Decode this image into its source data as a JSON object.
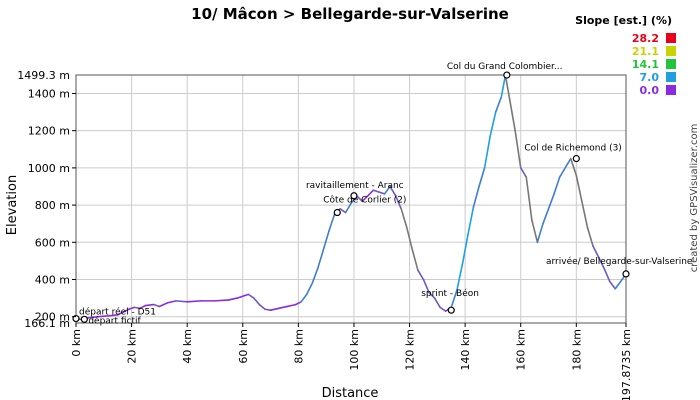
{
  "chart_data": {
    "type": "line",
    "title": "10/ Mâcon > Bellegarde-sur-Valserine",
    "xlabel": "Distance",
    "ylabel": "Elevation",
    "xlim": [
      0,
      197.8735
    ],
    "ylim": [
      166.1,
      1499.3
    ],
    "x_ticks": [
      0,
      20,
      40,
      60,
      80,
      100,
      120,
      140,
      160,
      180
    ],
    "x_tick_labels": [
      "0 km",
      "20 km",
      "40 km",
      "60 km",
      "80 km",
      "100 km",
      "120 km",
      "140 km",
      "160 km",
      "180 km"
    ],
    "x_end_label": "197.8735 km",
    "y_ticks": [
      200,
      400,
      600,
      800,
      1000,
      1200,
      1400
    ],
    "y_tick_labels": [
      "200 m",
      "400 m",
      "600 m",
      "800 m",
      "1000 m",
      "1200 m",
      "1400 m"
    ],
    "y_min_label": "166.1 m",
    "y_max_label": "1499.3 m",
    "grid": true,
    "series": [
      {
        "values_x": [
          0,
          2,
          5,
          8,
          12,
          15,
          17,
          19,
          21,
          23,
          25,
          28,
          30,
          33,
          36,
          40,
          45,
          50,
          55,
          58,
          60,
          62,
          64,
          66,
          68,
          70,
          73,
          76,
          79,
          81,
          83,
          85,
          87,
          89,
          91,
          93,
          95,
          97,
          99,
          101,
          103,
          105,
          107,
          109,
          111,
          113,
          115,
          117,
          119,
          121,
          123,
          125,
          127,
          129,
          131,
          133,
          135,
          137,
          139,
          141,
          143,
          145,
          147,
          149,
          151,
          153,
          154.5,
          156,
          158,
          160,
          162,
          164,
          166,
          168,
          170,
          172,
          174,
          176,
          178,
          180,
          182,
          184,
          186,
          188,
          190,
          192,
          194,
          196,
          197.87
        ],
        "values_y": [
          190,
          185,
          195,
          200,
          205,
          210,
          225,
          240,
          250,
          245,
          260,
          265,
          255,
          275,
          285,
          280,
          285,
          285,
          290,
          300,
          310,
          320,
          300,
          265,
          240,
          235,
          245,
          255,
          265,
          280,
          320,
          380,
          460,
          560,
          660,
          750,
          780,
          760,
          810,
          850,
          820,
          850,
          880,
          870,
          860,
          900,
          850,
          780,
          680,
          560,
          450,
          400,
          330,
          300,
          250,
          230,
          250,
          340,
          480,
          640,
          790,
          900,
          1000,
          1170,
          1300,
          1380,
          1499,
          1370,
          1200,
          1000,
          950,
          720,
          600,
          700,
          780,
          860,
          950,
          1000,
          1050,
          960,
          820,
          680,
          580,
          520,
          460,
          390,
          350,
          390,
          430
        ]
      }
    ],
    "annotations": [
      {
        "x": 0,
        "y": 190,
        "label": "départ réel - D51"
      },
      {
        "x": 3,
        "y": 186,
        "label": "départ fictif"
      },
      {
        "x": 94,
        "y": 760,
        "label": "Côte de Corlier (2)"
      },
      {
        "x": 100,
        "y": 850,
        "label": "ravitaillement - Aranc"
      },
      {
        "x": 135,
        "y": 235,
        "label": "sprint - Béon"
      },
      {
        "x": 155,
        "y": 1499,
        "label": "Col du Grand Colombier..."
      },
      {
        "x": 180,
        "y": 1050,
        "label": "Col de Richemond (3)"
      },
      {
        "x": 197.87,
        "y": 430,
        "label": "arrivée/ Bellegarde-sur-Valserine"
      }
    ],
    "legend": {
      "title": "Slope [est.] (%)",
      "placement": "top-right",
      "entries": [
        {
          "label": "28.2",
          "color": "#e8001c"
        },
        {
          "label": "21.1",
          "color": "#c8d400"
        },
        {
          "label": "14.1",
          "color": "#22c43a"
        },
        {
          "label": "7.0",
          "color": "#1f9ee0"
        },
        {
          "label": "0.0",
          "color": "#8a2be2"
        }
      ]
    },
    "credit": "created by GPSVisualizer.com"
  }
}
